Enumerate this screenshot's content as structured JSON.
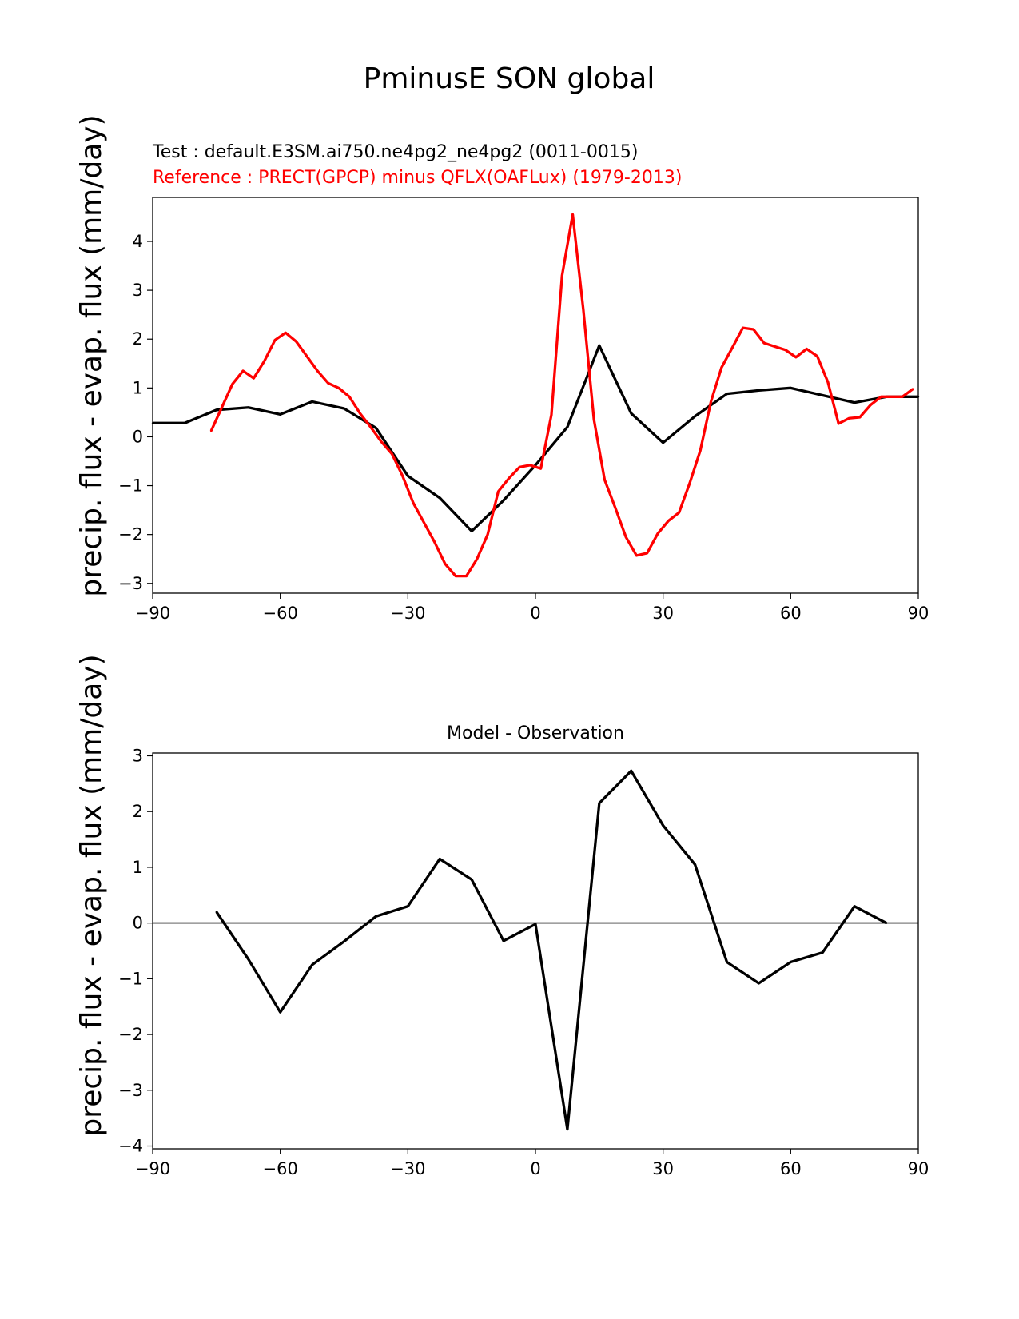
{
  "title": "PminusE SON global",
  "ylabel": "precip. flux - evap. flux (mm/day)",
  "colors": {
    "test": "#000000",
    "reference": "#ff0000",
    "zero_line": "#808080"
  },
  "chart_data": [
    {
      "type": "line",
      "test_label": "Test : default.E3SM.ai750.ne4pg2_ne4pg2 (0011-0015)",
      "reference_label": "Reference : PRECT(GPCP) minus QFLX(OAFLux) (1979-2013)",
      "xlim": [
        -90,
        90
      ],
      "ylim": [
        -3.2,
        4.9
      ],
      "xticks": [
        -90,
        -60,
        -30,
        0,
        30,
        60,
        90
      ],
      "xtick_labels": [
        "−90",
        "−60",
        "−30",
        "0",
        "30",
        "60",
        "90"
      ],
      "yticks": [
        -3,
        -2,
        -1,
        0,
        1,
        2,
        3,
        4
      ],
      "ytick_labels": [
        "−3",
        "−2",
        "−1",
        "0",
        "1",
        "2",
        "3",
        "4"
      ],
      "series": [
        {
          "key": "test",
          "color": "#000000",
          "x": [
            -90,
            -82.5,
            -75,
            -67.5,
            -60,
            -52.5,
            -45,
            -37.5,
            -30,
            -22.5,
            -15,
            -7.5,
            0,
            7.5,
            15,
            22.5,
            30,
            37.5,
            45,
            52.5,
            60,
            67.5,
            75,
            82.5,
            90
          ],
          "y": [
            0.28,
            0.28,
            0.55,
            0.6,
            0.46,
            0.72,
            0.58,
            0.18,
            -0.8,
            -1.25,
            -1.93,
            -1.3,
            -0.58,
            0.2,
            1.87,
            0.48,
            -0.12,
            0.42,
            0.88,
            0.95,
            1.0,
            0.85,
            0.7,
            0.82,
            0.82
          ]
        },
        {
          "key": "reference",
          "color": "#ff0000",
          "x": [
            -76.25,
            -73.75,
            -71.25,
            -68.75,
            -66.25,
            -63.75,
            -61.25,
            -58.75,
            -56.25,
            -53.75,
            -51.25,
            -48.75,
            -46.25,
            -43.75,
            -41.25,
            -38.75,
            -36.25,
            -33.75,
            -31.25,
            -28.75,
            -26.25,
            -23.75,
            -21.25,
            -18.75,
            -16.25,
            -13.75,
            -11.25,
            -8.75,
            -6.25,
            -3.75,
            -1.25,
            1.25,
            3.75,
            6.25,
            8.75,
            11.25,
            13.75,
            16.25,
            18.75,
            21.25,
            23.75,
            26.25,
            28.75,
            31.25,
            33.75,
            36.25,
            38.75,
            41.25,
            43.75,
            46.25,
            48.75,
            51.25,
            53.75,
            56.25,
            58.75,
            61.25,
            63.75,
            66.25,
            68.75,
            71.25,
            73.75,
            76.25,
            78.75,
            81.25,
            83.75,
            86.25,
            88.75
          ],
          "y": [
            0.12,
            0.6,
            1.08,
            1.35,
            1.2,
            1.55,
            1.98,
            2.13,
            1.95,
            1.65,
            1.35,
            1.1,
            1.0,
            0.82,
            0.48,
            0.2,
            -0.1,
            -0.35,
            -0.8,
            -1.35,
            -1.75,
            -2.15,
            -2.6,
            -2.85,
            -2.85,
            -2.5,
            -2.0,
            -1.12,
            -0.85,
            -0.62,
            -0.58,
            -0.65,
            0.45,
            3.3,
            4.55,
            2.6,
            0.35,
            -0.88,
            -1.45,
            -2.05,
            -2.43,
            -2.38,
            -1.98,
            -1.72,
            -1.55,
            -0.95,
            -0.28,
            0.72,
            1.42,
            1.82,
            2.23,
            2.2,
            1.92,
            1.85,
            1.78,
            1.63,
            1.8,
            1.65,
            1.12,
            0.27,
            0.38,
            0.4,
            0.65,
            0.82,
            0.82,
            0.82,
            0.98
          ]
        }
      ]
    },
    {
      "type": "line",
      "title": "Model - Observation",
      "xlim": [
        -90,
        90
      ],
      "ylim": [
        -4.05,
        3.05
      ],
      "xticks": [
        -90,
        -60,
        -30,
        0,
        30,
        60,
        90
      ],
      "xtick_labels": [
        "−90",
        "−60",
        "−30",
        "0",
        "30",
        "60",
        "90"
      ],
      "yticks": [
        -4,
        -3,
        -2,
        -1,
        0,
        1,
        2,
        3
      ],
      "ytick_labels": [
        "−4",
        "−3",
        "−2",
        "−1",
        "0",
        "1",
        "2",
        "3"
      ],
      "zero_line": 0,
      "series": [
        {
          "key": "diff",
          "color": "#000000",
          "x": [
            -75,
            -67.5,
            -60,
            -52.5,
            -45,
            -37.5,
            -30,
            -22.5,
            -15,
            -7.5,
            0,
            7.5,
            15,
            22.5,
            30,
            37.5,
            45,
            52.5,
            60,
            67.5,
            75,
            82.5
          ],
          "y": [
            0.2,
            -0.65,
            -1.6,
            -0.75,
            -0.33,
            0.12,
            0.3,
            1.15,
            0.78,
            -0.32,
            -0.02,
            -3.7,
            2.15,
            2.73,
            1.75,
            1.05,
            -0.7,
            -1.08,
            -0.7,
            -0.53,
            0.3,
            0.0
          ]
        }
      ]
    }
  ]
}
